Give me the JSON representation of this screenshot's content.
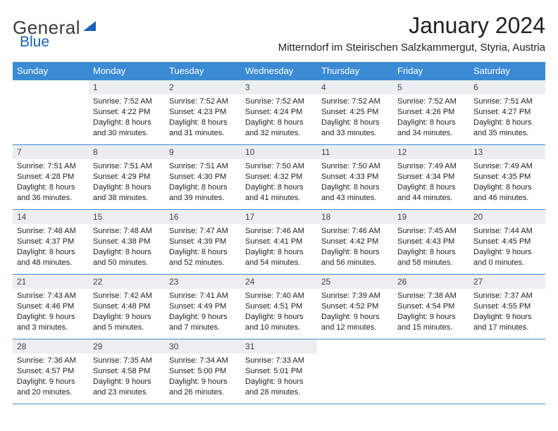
{
  "logo": {
    "part1": "General",
    "part2": "Blue"
  },
  "title": "January 2024",
  "location": "Mitterndorf im Steirischen Salzkammergut, Styria, Austria",
  "colors": {
    "header_bg": "#3b8bd4",
    "header_text": "#ffffff",
    "daynum_bg": "#eceef0",
    "border": "#3b8bd4",
    "logo_gray": "#3a3a3a",
    "logo_blue": "#1a5fb4"
  },
  "weekdays": [
    "Sunday",
    "Monday",
    "Tuesday",
    "Wednesday",
    "Thursday",
    "Friday",
    "Saturday"
  ],
  "weeks": [
    [
      null,
      {
        "n": "1",
        "sr": "Sunrise: 7:52 AM",
        "ss": "Sunset: 4:22 PM",
        "d1": "Daylight: 8 hours",
        "d2": "and 30 minutes."
      },
      {
        "n": "2",
        "sr": "Sunrise: 7:52 AM",
        "ss": "Sunset: 4:23 PM",
        "d1": "Daylight: 8 hours",
        "d2": "and 31 minutes."
      },
      {
        "n": "3",
        "sr": "Sunrise: 7:52 AM",
        "ss": "Sunset: 4:24 PM",
        "d1": "Daylight: 8 hours",
        "d2": "and 32 minutes."
      },
      {
        "n": "4",
        "sr": "Sunrise: 7:52 AM",
        "ss": "Sunset: 4:25 PM",
        "d1": "Daylight: 8 hours",
        "d2": "and 33 minutes."
      },
      {
        "n": "5",
        "sr": "Sunrise: 7:52 AM",
        "ss": "Sunset: 4:26 PM",
        "d1": "Daylight: 8 hours",
        "d2": "and 34 minutes."
      },
      {
        "n": "6",
        "sr": "Sunrise: 7:51 AM",
        "ss": "Sunset: 4:27 PM",
        "d1": "Daylight: 8 hours",
        "d2": "and 35 minutes."
      }
    ],
    [
      {
        "n": "7",
        "sr": "Sunrise: 7:51 AM",
        "ss": "Sunset: 4:28 PM",
        "d1": "Daylight: 8 hours",
        "d2": "and 36 minutes."
      },
      {
        "n": "8",
        "sr": "Sunrise: 7:51 AM",
        "ss": "Sunset: 4:29 PM",
        "d1": "Daylight: 8 hours",
        "d2": "and 38 minutes."
      },
      {
        "n": "9",
        "sr": "Sunrise: 7:51 AM",
        "ss": "Sunset: 4:30 PM",
        "d1": "Daylight: 8 hours",
        "d2": "and 39 minutes."
      },
      {
        "n": "10",
        "sr": "Sunrise: 7:50 AM",
        "ss": "Sunset: 4:32 PM",
        "d1": "Daylight: 8 hours",
        "d2": "and 41 minutes."
      },
      {
        "n": "11",
        "sr": "Sunrise: 7:50 AM",
        "ss": "Sunset: 4:33 PM",
        "d1": "Daylight: 8 hours",
        "d2": "and 43 minutes."
      },
      {
        "n": "12",
        "sr": "Sunrise: 7:49 AM",
        "ss": "Sunset: 4:34 PM",
        "d1": "Daylight: 8 hours",
        "d2": "and 44 minutes."
      },
      {
        "n": "13",
        "sr": "Sunrise: 7:49 AM",
        "ss": "Sunset: 4:35 PM",
        "d1": "Daylight: 8 hours",
        "d2": "and 46 minutes."
      }
    ],
    [
      {
        "n": "14",
        "sr": "Sunrise: 7:48 AM",
        "ss": "Sunset: 4:37 PM",
        "d1": "Daylight: 8 hours",
        "d2": "and 48 minutes."
      },
      {
        "n": "15",
        "sr": "Sunrise: 7:48 AM",
        "ss": "Sunset: 4:38 PM",
        "d1": "Daylight: 8 hours",
        "d2": "and 50 minutes."
      },
      {
        "n": "16",
        "sr": "Sunrise: 7:47 AM",
        "ss": "Sunset: 4:39 PM",
        "d1": "Daylight: 8 hours",
        "d2": "and 52 minutes."
      },
      {
        "n": "17",
        "sr": "Sunrise: 7:46 AM",
        "ss": "Sunset: 4:41 PM",
        "d1": "Daylight: 8 hours",
        "d2": "and 54 minutes."
      },
      {
        "n": "18",
        "sr": "Sunrise: 7:46 AM",
        "ss": "Sunset: 4:42 PM",
        "d1": "Daylight: 8 hours",
        "d2": "and 56 minutes."
      },
      {
        "n": "19",
        "sr": "Sunrise: 7:45 AM",
        "ss": "Sunset: 4:43 PM",
        "d1": "Daylight: 8 hours",
        "d2": "and 58 minutes."
      },
      {
        "n": "20",
        "sr": "Sunrise: 7:44 AM",
        "ss": "Sunset: 4:45 PM",
        "d1": "Daylight: 9 hours",
        "d2": "and 0 minutes."
      }
    ],
    [
      {
        "n": "21",
        "sr": "Sunrise: 7:43 AM",
        "ss": "Sunset: 4:46 PM",
        "d1": "Daylight: 9 hours",
        "d2": "and 3 minutes."
      },
      {
        "n": "22",
        "sr": "Sunrise: 7:42 AM",
        "ss": "Sunset: 4:48 PM",
        "d1": "Daylight: 9 hours",
        "d2": "and 5 minutes."
      },
      {
        "n": "23",
        "sr": "Sunrise: 7:41 AM",
        "ss": "Sunset: 4:49 PM",
        "d1": "Daylight: 9 hours",
        "d2": "and 7 minutes."
      },
      {
        "n": "24",
        "sr": "Sunrise: 7:40 AM",
        "ss": "Sunset: 4:51 PM",
        "d1": "Daylight: 9 hours",
        "d2": "and 10 minutes."
      },
      {
        "n": "25",
        "sr": "Sunrise: 7:39 AM",
        "ss": "Sunset: 4:52 PM",
        "d1": "Daylight: 9 hours",
        "d2": "and 12 minutes."
      },
      {
        "n": "26",
        "sr": "Sunrise: 7:38 AM",
        "ss": "Sunset: 4:54 PM",
        "d1": "Daylight: 9 hours",
        "d2": "and 15 minutes."
      },
      {
        "n": "27",
        "sr": "Sunrise: 7:37 AM",
        "ss": "Sunset: 4:55 PM",
        "d1": "Daylight: 9 hours",
        "d2": "and 17 minutes."
      }
    ],
    [
      {
        "n": "28",
        "sr": "Sunrise: 7:36 AM",
        "ss": "Sunset: 4:57 PM",
        "d1": "Daylight: 9 hours",
        "d2": "and 20 minutes."
      },
      {
        "n": "29",
        "sr": "Sunrise: 7:35 AM",
        "ss": "Sunset: 4:58 PM",
        "d1": "Daylight: 9 hours",
        "d2": "and 23 minutes."
      },
      {
        "n": "30",
        "sr": "Sunrise: 7:34 AM",
        "ss": "Sunset: 5:00 PM",
        "d1": "Daylight: 9 hours",
        "d2": "and 26 minutes."
      },
      {
        "n": "31",
        "sr": "Sunrise: 7:33 AM",
        "ss": "Sunset: 5:01 PM",
        "d1": "Daylight: 9 hours",
        "d2": "and 28 minutes."
      },
      null,
      null,
      null
    ]
  ]
}
